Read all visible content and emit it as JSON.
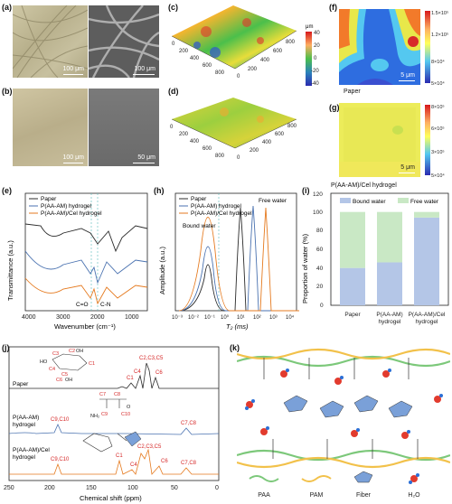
{
  "panels": {
    "a": {
      "label": "(a)",
      "scale_left": "100 μm",
      "scale_right": "100 μm"
    },
    "b": {
      "label": "(b)",
      "scale_left": "100 μm",
      "scale_right": "50 μm"
    },
    "c": {
      "label": "(c)",
      "colorbar_unit": "μm",
      "colorbar_ticks": [
        "40",
        "20",
        "0",
        "-20",
        "-40"
      ],
      "x_ticks": [
        "0",
        "200",
        "400",
        "600",
        "800"
      ],
      "y_ticks": [
        "0",
        "200",
        "400",
        "600",
        "800"
      ]
    },
    "d": {
      "label": "(d)",
      "x_ticks": [
        "0",
        "200",
        "400",
        "600",
        "800"
      ],
      "y_ticks": [
        "0",
        "200",
        "400",
        "600",
        "800"
      ]
    },
    "f": {
      "label": "(f)",
      "scale": "5 μm",
      "caption": "Paper",
      "colorbar_ticks": [
        "1.5×10⁵",
        "1.2×10⁵",
        "8×10⁴",
        "5×10⁴"
      ]
    },
    "g": {
      "label": "(g)",
      "scale": "5 μm",
      "caption": "P(AA-AM)/Cel hydrogel",
      "colorbar_ticks": [
        "8×10⁵",
        "6×10⁵",
        "3×10⁵",
        "5×10⁴"
      ]
    },
    "e": {
      "label": "(e)",
      "xlabel": "Wavenumber (cm⁻¹)",
      "ylabel": "Transmittance (a.u.)",
      "x_ticks": [
        "4000",
        "3000",
        "2000",
        "1000"
      ],
      "annotation_co": "C=O",
      "annotation_cn": "C-N"
    },
    "h": {
      "label": "(h)",
      "xlabel": "T₂ (ms)",
      "ylabel": "Amplitude (a.u.)",
      "x_ticks": [
        "10⁻³",
        "10⁻²",
        "10⁻¹",
        "10⁰",
        "10¹",
        "10²",
        "10³",
        "10⁴"
      ],
      "annotation_bound": "Bound water",
      "annotation_free": "Free water"
    },
    "i": {
      "label": "(i)",
      "ylabel": "Proportion of water (%)",
      "y_ticks": [
        "0",
        "20",
        "40",
        "60",
        "80",
        "100",
        "120"
      ]
    },
    "j": {
      "label": "(j)",
      "xlabel": "Chemical shift (ppm)",
      "x_ticks": [
        "250",
        "200",
        "150",
        "100",
        "50",
        "0"
      ],
      "trace_labels": [
        "Paper",
        "P(AA-AM)\nhydrogel",
        "P(AA-AM)/Cel\nhydrogel"
      ],
      "peak_labels": {
        "paper": [
          "C1",
          "C4",
          "C2,C3,C5",
          "C6"
        ],
        "paam": [
          "C9,C10",
          "C7,C8"
        ],
        "cel": [
          "C9,C10",
          "C1",
          "C4",
          "C2,C3,C5",
          "C6",
          "C7,C8"
        ]
      },
      "struct_paper": [
        "C3",
        "OH",
        "C2",
        "C1",
        "C4",
        "C5",
        "C6",
        "OH",
        "HO"
      ],
      "struct_paam": [
        "C7",
        "C8",
        "C9",
        "C10",
        "NH₂",
        "O",
        "OH",
        "O"
      ]
    },
    "k": {
      "label": "(k)",
      "legend": [
        "PAA",
        "PAM",
        "Fiber",
        "H₂O"
      ]
    }
  },
  "colors": {
    "paper": "#2b2b2b",
    "paam": "#4a72b0",
    "cel": "#e57a1f",
    "bound": "#b4c6e7",
    "free": "#c9e8c5",
    "peak_red": "#d62828",
    "wave_green": "#7cc87a",
    "wave_yellow": "#f2c14a"
  },
  "chart_data": [
    {
      "panel": "e",
      "type": "line",
      "title": "",
      "xlabel": "Wavenumber (cm⁻¹)",
      "ylabel": "Transmittance (a.u.)",
      "xlim": [
        4000,
        500
      ],
      "series": [
        {
          "name": "Paper"
        },
        {
          "name": "P(AA-AM) hydrogel"
        },
        {
          "name": "P(AA-AM)/Cel hydrogel"
        }
      ],
      "annotations": [
        "C=O",
        "C-N"
      ],
      "legend_position": "top-left"
    },
    {
      "panel": "h",
      "type": "line",
      "xlabel": "T₂ (ms)",
      "ylabel": "Amplitude (a.u.)",
      "x_scale": "log",
      "xlim": [
        0.001,
        10000
      ],
      "series": [
        {
          "name": "Paper",
          "peaks_ms": [
            0.4,
            12
          ]
        },
        {
          "name": "P(AA-AM) hydrogel",
          "peaks_ms": [
            0.4,
            100
          ]
        },
        {
          "name": "P(AA-AM)/Cel hydrogel",
          "peaks_ms": [
            0.4,
            90
          ]
        }
      ],
      "legend_position": "top-left"
    },
    {
      "panel": "i",
      "type": "bar",
      "stacked": true,
      "ylabel": "Proportion of water (%)",
      "ylim": [
        0,
        120
      ],
      "categories": [
        "Paper",
        "P(AA-AM)\nhydrogel",
        "P(AA-AM)/Cel\nhydrogel"
      ],
      "series": [
        {
          "name": "Bound water",
          "values": [
            40,
            46,
            94
          ]
        },
        {
          "name": "Free water",
          "values": [
            60,
            54,
            6
          ]
        }
      ],
      "legend_position": "top"
    },
    {
      "panel": "j",
      "type": "line",
      "xlabel": "Chemical shift (ppm)",
      "xlim": [
        250,
        0
      ],
      "series": [
        {
          "name": "Paper",
          "peaks_ppm": [
            105,
            88,
            84,
            75,
            72,
            65,
            62
          ]
        },
        {
          "name": "P(AA-AM) hydrogel",
          "peaks_ppm": [
            180,
            42
          ]
        },
        {
          "name": "P(AA-AM)/Cel hydrogel",
          "peaks_ppm": [
            180,
            105,
            88,
            75,
            72,
            65,
            42
          ]
        }
      ]
    }
  ]
}
